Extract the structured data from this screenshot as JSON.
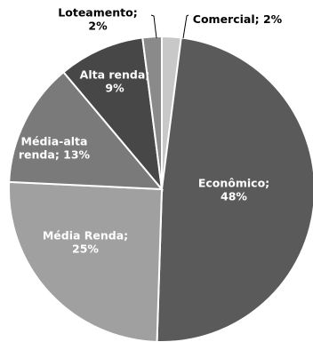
{
  "chart_data": {
    "type": "pie",
    "title": "",
    "slices": [
      {
        "name": "Comercial",
        "value": 2,
        "label_lines": [
          "Comercial; 2%"
        ],
        "color": "#c8c8c8",
        "placement": "outside"
      },
      {
        "name": "Econômico",
        "value": 48,
        "label_lines": [
          "Econômico;",
          "48%"
        ],
        "color": "#5a5a5a",
        "placement": "inside"
      },
      {
        "name": "Média Renda",
        "value": 25,
        "label_lines": [
          "Média Renda;",
          "25%"
        ],
        "color": "#a0a0a0",
        "placement": "inside"
      },
      {
        "name": "Média-alta renda",
        "value": 13,
        "label_lines": [
          "Média-alta",
          "renda; 13%"
        ],
        "color": "#7a7a7a",
        "placement": "inside"
      },
      {
        "name": "Alta renda",
        "value": 9,
        "label_lines": [
          "Alta renda;",
          "9%"
        ],
        "color": "#474747",
        "placement": "inside"
      },
      {
        "name": "Loteamento",
        "value": 2,
        "label_lines": [
          "Loteamento;",
          "2%"
        ],
        "color": "#8a8a8a",
        "placement": "outside"
      }
    ],
    "legend": "none",
    "start_angle": "12 o'clock, clockwise"
  }
}
